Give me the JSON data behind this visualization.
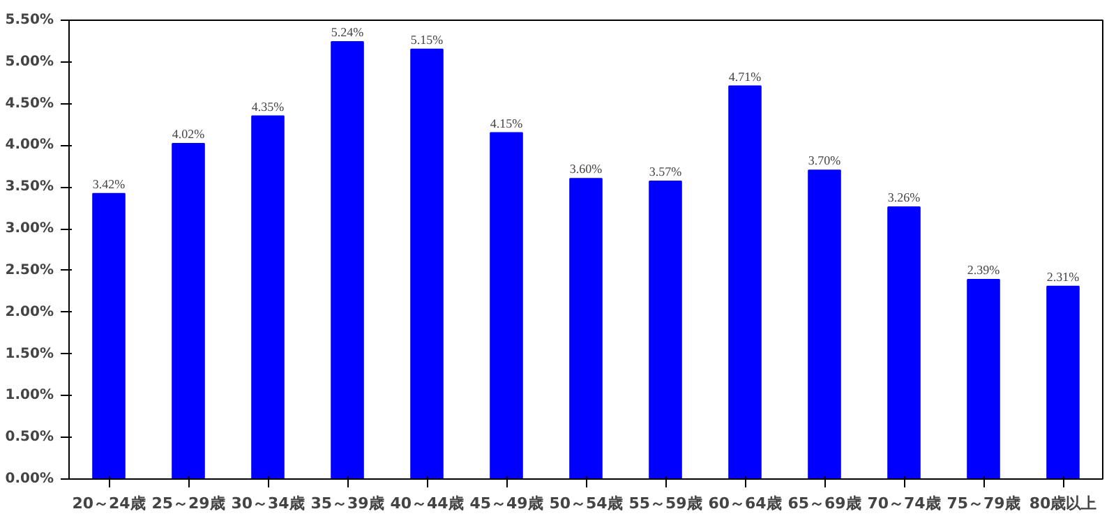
{
  "chart_data": {
    "type": "bar",
    "categories": [
      "20～24歳",
      "25～29歳",
      "30～34歳",
      "35～39歳",
      "40～44歳",
      "45～49歳",
      "50～54歳",
      "55～59歳",
      "60～64歳",
      "65～69歳",
      "70～74歳",
      "75～79歳",
      "80歳以上"
    ],
    "values": [
      3.42,
      4.02,
      4.35,
      5.24,
      5.15,
      4.15,
      3.6,
      3.57,
      4.71,
      3.7,
      3.26,
      2.39,
      2.31
    ],
    "value_labels": [
      "3.42%",
      "4.02%",
      "4.35%",
      "5.24%",
      "5.15%",
      "4.15%",
      "3.60%",
      "3.57%",
      "4.71%",
      "3.70%",
      "3.26%",
      "2.39%",
      "2.31%"
    ],
    "color": "#0000ff",
    "ylim": [
      0,
      5.5
    ],
    "yticks": [
      {
        "value": 0,
        "label": "0.00%"
      },
      {
        "value": 0.5,
        "label": "0.50%"
      },
      {
        "value": 1,
        "label": "1.00%"
      },
      {
        "value": 1.5,
        "label": "1.50%"
      },
      {
        "value": 2,
        "label": "2.00%"
      },
      {
        "value": 2.5,
        "label": "2.50%"
      },
      {
        "value": 3,
        "label": "3.00%"
      },
      {
        "value": 3.5,
        "label": "3.50%"
      },
      {
        "value": 4,
        "label": "4.00%"
      },
      {
        "value": 4.5,
        "label": "4.50%"
      },
      {
        "value": 5,
        "label": "5.00%"
      },
      {
        "value": 5.5,
        "label": "5.50%"
      }
    ],
    "grid": false
  }
}
